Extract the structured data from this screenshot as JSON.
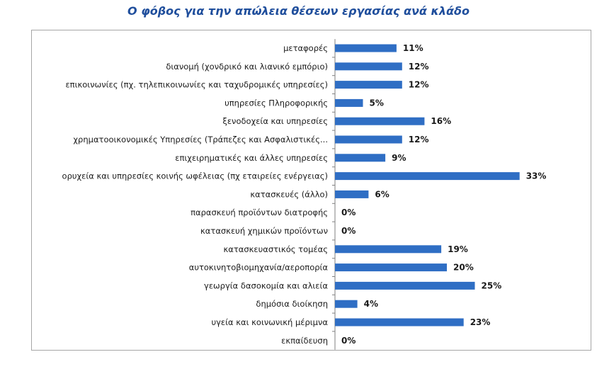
{
  "colors": {
    "bar": "#2f6ec4",
    "title": "#1f4e9c",
    "axis": "#7f7f7f"
  },
  "chart_data": {
    "type": "bar",
    "orientation": "horizontal",
    "title": "Ο φόβος για την απώλεια θέσεων εργασίας ανά κλάδο",
    "xlabel": "",
    "ylabel": "",
    "xlim": [
      0,
      33
    ],
    "grid": false,
    "legend": "none",
    "categories": [
      "μεταφορές",
      "διανομή (χονδρικό και λιανικό εμπόριο)",
      "επικοινωνίες (πχ. τηλεπικοινωνίες και ταχυδρομικές υπηρεσίες)",
      "υπηρεσίες Πληροφορικής",
      "ξενοδοχεία και υπηρεσίες",
      "χρηματοοικονομικές Υπηρεσίες (Τράπεζες και Ασφαλιστικές...",
      "επιχειρηματικές και άλλες υπηρεσίες",
      "ορυχεία και υπηρεσίες κοινής ωφέλειας (πχ εταιρείες ενέργειας)",
      "κατασκευές (άλλο)",
      "παρασκευή προϊόντων διατροφής",
      "κατασκευή χημικών προϊόντων",
      "κατασκευαστικός τομέας",
      "αυτοκινητοβιομηχανία/αεροπορία",
      "γεωργία δασοκομία και αλιεία",
      "δημόσια διοίκηση",
      "υγεία και κοινωνική μέριμνα",
      "εκπαίδευση"
    ],
    "values": [
      11,
      12,
      12,
      5,
      16,
      12,
      9,
      33,
      6,
      0,
      0,
      19,
      20,
      25,
      4,
      23,
      0
    ],
    "value_labels": [
      "11%",
      "12%",
      "12%",
      "5%",
      "16%",
      "12%",
      "9%",
      "33%",
      "6%",
      "0%",
      "0%",
      "19%",
      "20%",
      "25%",
      "4%",
      "23%",
      "0%"
    ]
  }
}
